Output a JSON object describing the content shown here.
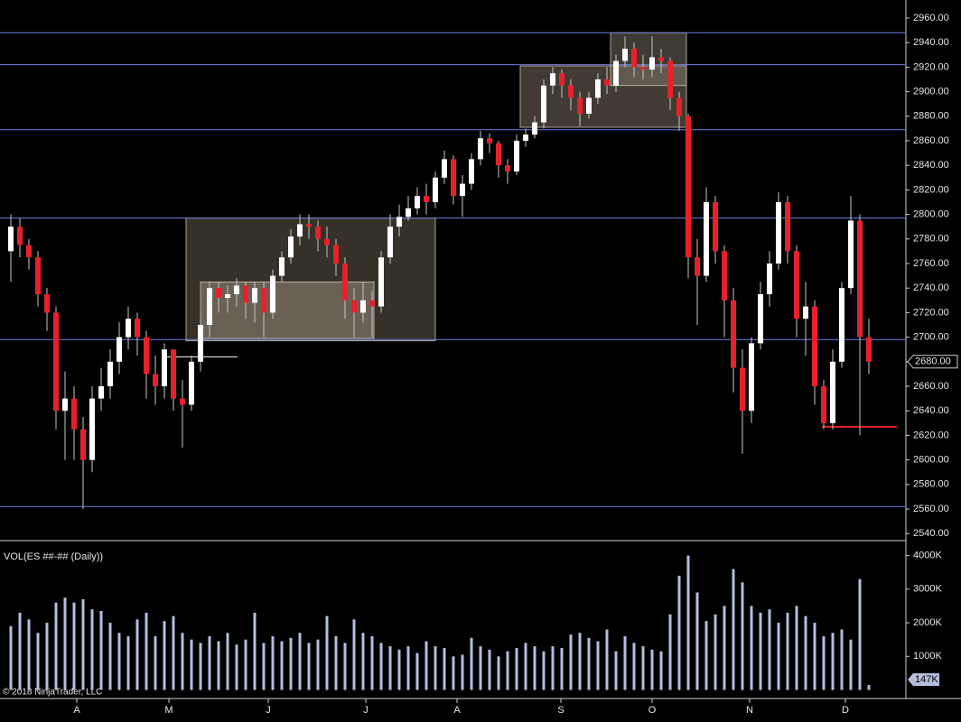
{
  "chart_data": {
    "type": "candlestick",
    "volume_title": "VOL(ES ##-## (Daily))",
    "copyright": "© 2018 NinjaTrader, LLC",
    "price_tag": "2680.00",
    "volume_tag": "147K",
    "up_color": "#ffffff",
    "down_color": "#e8202a",
    "volume_color": "#b4bedd",
    "xlim": [
      -1.2,
      99.1
    ],
    "xticks": [
      {
        "value": 7.3,
        "label": "A"
      },
      {
        "value": 17.5,
        "label": "M"
      },
      {
        "value": 28.5,
        "label": "J"
      },
      {
        "value": 39.3,
        "label": "J"
      },
      {
        "value": 49.4,
        "label": "A"
      },
      {
        "value": 60.9,
        "label": "S"
      },
      {
        "value": 71,
        "label": "O"
      },
      {
        "value": 81.8,
        "label": "N"
      },
      {
        "value": 92.4,
        "label": "D"
      }
    ],
    "ylim": [
      2535,
      2971
    ],
    "yticks": [
      {
        "value": 2540,
        "label": "2540.00"
      },
      {
        "value": 2560,
        "label": "2560.00"
      },
      {
        "value": 2580,
        "label": "2580.00"
      },
      {
        "value": 2600,
        "label": "2600.00"
      },
      {
        "value": 2620,
        "label": "2620.00"
      },
      {
        "value": 2640,
        "label": "2640.00"
      },
      {
        "value": 2660,
        "label": "2660.00"
      },
      {
        "value": 2680,
        "label": "2680.00"
      },
      {
        "value": 2700,
        "label": "2700.00"
      },
      {
        "value": 2720,
        "label": "2720.00"
      },
      {
        "value": 2740,
        "label": "2740.00"
      },
      {
        "value": 2760,
        "label": "2760.00"
      },
      {
        "value": 2780,
        "label": "2780.00"
      },
      {
        "value": 2800,
        "label": "2800.00"
      },
      {
        "value": 2820,
        "label": "2820.00"
      },
      {
        "value": 2840,
        "label": "2840.00"
      },
      {
        "value": 2860,
        "label": "2860.00"
      },
      {
        "value": 2880,
        "label": "2880.00"
      },
      {
        "value": 2900,
        "label": "2900.00"
      },
      {
        "value": 2920,
        "label": "2920.00"
      },
      {
        "value": 2940,
        "label": "2940.00"
      },
      {
        "value": 2960,
        "label": "2960.00"
      }
    ],
    "volume_ylim": [
      0,
      4150
    ],
    "volume_yticks": [
      {
        "value": 1000,
        "label": "1000K"
      },
      {
        "value": 2000,
        "label": "2000K"
      },
      {
        "value": 3000,
        "label": "3000K"
      },
      {
        "value": 4000,
        "label": "4000K"
      }
    ],
    "open": [
      2770,
      2790,
      2775,
      2765,
      2735,
      2720,
      2640,
      2650,
      2625,
      2600,
      2650,
      2660,
      2680,
      2700,
      2715,
      2700,
      2670,
      2660,
      2690,
      2650,
      2645,
      2680,
      2710,
      2740,
      2732,
      2735,
      2742,
      2728,
      2740,
      2720,
      2750,
      2765,
      2782,
      2792,
      2790,
      2780,
      2775,
      2760,
      2730,
      2720,
      2730,
      2725,
      2765,
      2790,
      2798,
      2805,
      2815,
      2810,
      2830,
      2845,
      2815,
      2825,
      2845,
      2862,
      2858,
      2840,
      2835,
      2860,
      2865,
      2875,
      2905,
      2915,
      2905,
      2895,
      2882,
      2895,
      2910,
      2905,
      2925,
      2935,
      2920,
      2918,
      2928,
      2925,
      2895,
      2880,
      2765,
      2750,
      2810,
      2770,
      2730,
      2675,
      2640,
      2695,
      2735,
      2760,
      2810,
      2770,
      2715,
      2725,
      2660,
      2630,
      2680,
      2740,
      2795,
      2700
    ],
    "high": [
      2800,
      2797,
      2780,
      2770,
      2740,
      2725,
      2672,
      2660,
      2635,
      2660,
      2675,
      2690,
      2712,
      2725,
      2720,
      2705,
      2685,
      2695,
      2690,
      2665,
      2685,
      2715,
      2745,
      2745,
      2742,
      2748,
      2745,
      2745,
      2745,
      2755,
      2770,
      2788,
      2800,
      2800,
      2795,
      2790,
      2780,
      2765,
      2740,
      2745,
      2738,
      2770,
      2800,
      2808,
      2815,
      2822,
      2825,
      2835,
      2852,
      2848,
      2832,
      2850,
      2868,
      2866,
      2860,
      2845,
      2865,
      2870,
      2880,
      2910,
      2920,
      2918,
      2910,
      2900,
      2900,
      2915,
      2920,
      2930,
      2945,
      2940,
      2930,
      2945,
      2935,
      2928,
      2900,
      2882,
      2780,
      2822,
      2815,
      2775,
      2740,
      2690,
      2700,
      2745,
      2770,
      2818,
      2815,
      2775,
      2745,
      2730,
      2665,
      2690,
      2745,
      2815,
      2800,
      2715
    ],
    "low": [
      2745,
      2765,
      2755,
      2725,
      2705,
      2625,
      2600,
      2600,
      2560,
      2590,
      2640,
      2650,
      2670,
      2690,
      2685,
      2650,
      2645,
      2650,
      2640,
      2610,
      2640,
      2672,
      2700,
      2720,
      2720,
      2725,
      2715,
      2712,
      2700,
      2715,
      2745,
      2760,
      2775,
      2780,
      2770,
      2765,
      2750,
      2715,
      2700,
      2712,
      2700,
      2720,
      2760,
      2782,
      2795,
      2800,
      2800,
      2805,
      2825,
      2808,
      2798,
      2820,
      2840,
      2850,
      2830,
      2825,
      2832,
      2855,
      2862,
      2870,
      2898,
      2895,
      2885,
      2872,
      2878,
      2890,
      2898,
      2900,
      2920,
      2912,
      2910,
      2912,
      2915,
      2885,
      2868,
      2748,
      2710,
      2745,
      2760,
      2700,
      2655,
      2605,
      2630,
      2690,
      2725,
      2755,
      2760,
      2700,
      2685,
      2645,
      2625,
      2625,
      2675,
      2735,
      2620,
      2670
    ],
    "close": [
      2790,
      2775,
      2765,
      2735,
      2720,
      2640,
      2650,
      2625,
      2600,
      2650,
      2660,
      2680,
      2700,
      2715,
      2700,
      2670,
      2660,
      2690,
      2650,
      2645,
      2680,
      2710,
      2740,
      2732,
      2735,
      2742,
      2728,
      2740,
      2720,
      2750,
      2765,
      2782,
      2792,
      2790,
      2780,
      2775,
      2760,
      2730,
      2720,
      2730,
      2725,
      2765,
      2790,
      2798,
      2805,
      2815,
      2810,
      2830,
      2845,
      2815,
      2825,
      2845,
      2862,
      2858,
      2840,
      2835,
      2860,
      2865,
      2875,
      2905,
      2915,
      2905,
      2895,
      2882,
      2895,
      2910,
      2905,
      2925,
      2935,
      2920,
      2918,
      2928,
      2925,
      2895,
      2880,
      2765,
      2750,
      2810,
      2770,
      2730,
      2675,
      2640,
      2695,
      2735,
      2760,
      2810,
      2770,
      2715,
      2725,
      2660,
      2630,
      2680,
      2740,
      2795,
      2700,
      2680
    ],
    "volume": [
      1900,
      2300,
      2100,
      1700,
      2000,
      2600,
      2750,
      2600,
      2700,
      2400,
      2350,
      2000,
      1700,
      1600,
      2100,
      2300,
      1600,
      2050,
      2200,
      1700,
      1500,
      1400,
      1600,
      1450,
      1700,
      1350,
      1500,
      2300,
      1400,
      1600,
      1450,
      1550,
      1700,
      1400,
      1500,
      2200,
      1600,
      1400,
      2100,
      1700,
      1600,
      1400,
      1300,
      1200,
      1300,
      1100,
      1450,
      1300,
      1250,
      1000,
      1050,
      1550,
      1300,
      1200,
      1000,
      1150,
      1250,
      1400,
      1300,
      1150,
      1300,
      1250,
      1650,
      1700,
      1550,
      1450,
      1800,
      1150,
      1600,
      1400,
      1300,
      1200,
      1150,
      2250,
      3400,
      4000,
      2900,
      2050,
      2250,
      2500,
      3600,
      3200,
      2500,
      2300,
      2400,
      2000,
      2300,
      2500,
      2200,
      2000,
      1600,
      1700,
      1800,
      1500,
      3300,
      147
    ],
    "levels": [
      2948,
      2922,
      2869,
      2797,
      2698,
      2562
    ],
    "level_color": "#6f7fe0",
    "zones": [
      [
        19.4,
        47,
        2697,
        2797
      ],
      [
        21,
        40.2,
        2699,
        2745
      ],
      [
        56.4,
        74.8,
        2871,
        2921
      ],
      [
        66.4,
        74.8,
        2905,
        2948
      ]
    ],
    "support_line": [
      89.8,
      98.1,
      2627
    ],
    "marker_line": [
      16.8,
      25.1,
      2684
    ]
  }
}
